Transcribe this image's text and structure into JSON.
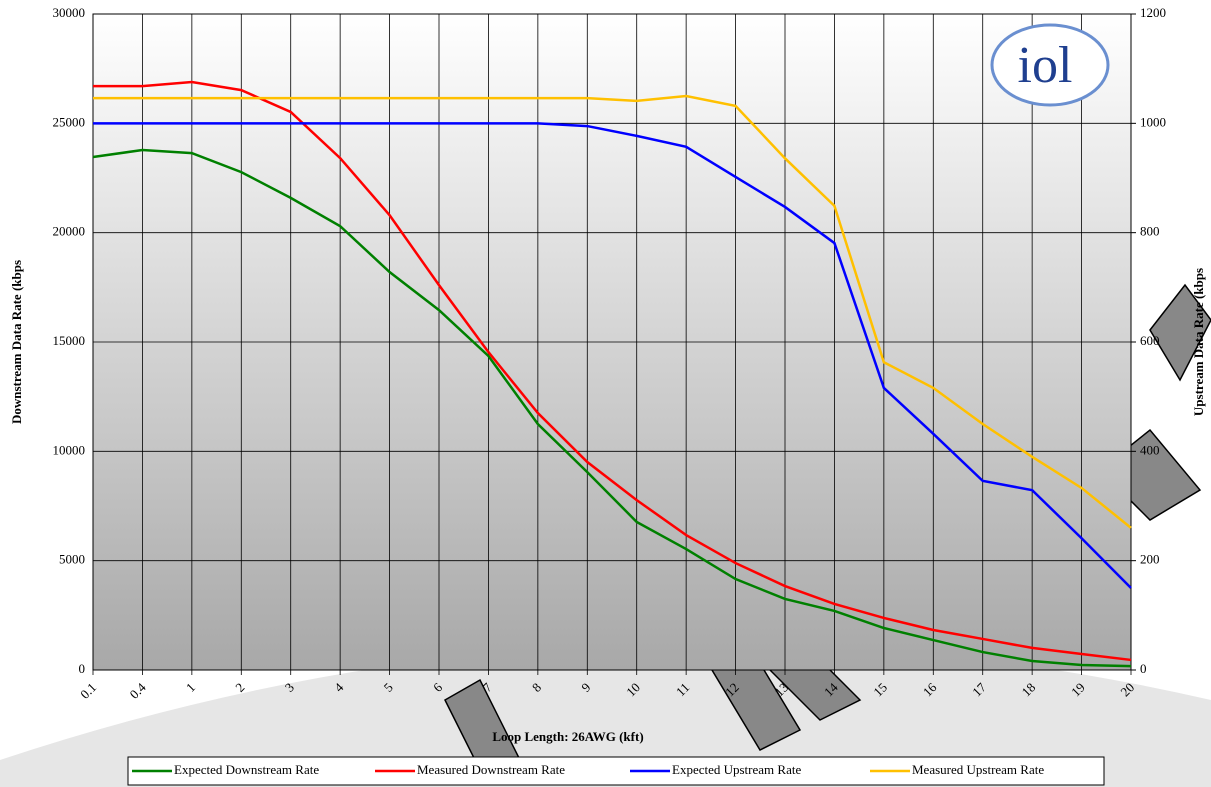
{
  "chart_data": {
    "type": "line",
    "logo": "iol",
    "x_label": "Loop Length: 26AWG (kft)",
    "y_label": "Downstream Data Rate (kbps",
    "y2_label": "Upstream Data Rate (kbps",
    "categories": [
      "0.1",
      "0.4",
      "1",
      "2",
      "3",
      "4",
      "5",
      "6",
      "7",
      "8",
      "9",
      "10",
      "11",
      "12",
      "13",
      "14",
      "15",
      "16",
      "17",
      "18",
      "19",
      "20"
    ],
    "ylim": [
      0,
      30000
    ],
    "yticks": [
      0,
      5000,
      10000,
      15000,
      20000,
      25000,
      30000
    ],
    "y2lim": [
      0,
      1200
    ],
    "y2ticks": [
      0,
      200,
      400,
      600,
      800,
      1000,
      1200
    ],
    "grid": true,
    "series": [
      {
        "name": "Expected Downstream Rate",
        "color": "#008000",
        "values": [
          23460,
          23780,
          23640,
          22770,
          21590,
          20300,
          18200,
          16460,
          14360,
          11250,
          9050,
          6770,
          5530,
          4160,
          3250,
          2700,
          1920,
          1370,
          820,
          410,
          230,
          180
        ]
      },
      {
        "name": "Measured Downstream Rate",
        "color": "#ff0000",
        "values": [
          26700,
          26700,
          26890,
          26520,
          25520,
          23410,
          20800,
          17600,
          14540,
          11750,
          9510,
          7770,
          6170,
          4890,
          3840,
          3020,
          2380,
          1830,
          1420,
          1010,
          730,
          460
        ]
      },
      {
        "name": "Expected Upstream Rate",
        "color": "#0000ff",
        "axis": "y2",
        "values": [
          1000,
          1000,
          1000,
          1000,
          1000,
          1000,
          1000,
          1000,
          1000,
          1000,
          995,
          977,
          957,
          902,
          847,
          781,
          516,
          432,
          346,
          329,
          241,
          150
        ]
      },
      {
        "name": "Measured Upstream Rate",
        "color": "#ffc000",
        "axis": "y2",
        "values": [
          1046,
          1046,
          1046,
          1046,
          1046,
          1046,
          1046,
          1046,
          1046,
          1046,
          1046,
          1041,
          1050,
          1032,
          936,
          849,
          563,
          516,
          450,
          390,
          333,
          260
        ]
      }
    ]
  }
}
